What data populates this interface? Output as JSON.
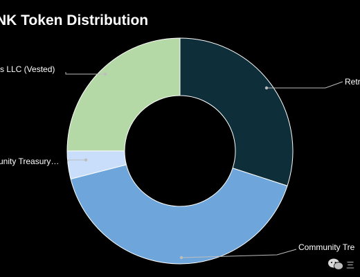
{
  "chart_data": {
    "type": "pie",
    "variant": "donut",
    "title": "NK Token Distribution",
    "slices": [
      {
        "label": "Retr",
        "value": 30,
        "color": "#0e2f3a"
      },
      {
        "label": "Community Tre",
        "value": 41,
        "color": "#6ea6dc"
      },
      {
        "label": "unity Treasury…",
        "value": 4,
        "color": "#c9defa"
      },
      {
        "label": "ss LLC (Vested)",
        "value": 25,
        "color": "#b5d9a6"
      }
    ],
    "slice_border_color": "#ffffff",
    "leader_color": "#bdbdbd",
    "legend": "none"
  },
  "watermark": {
    "icon": "wechat-icon",
    "text": "三"
  }
}
